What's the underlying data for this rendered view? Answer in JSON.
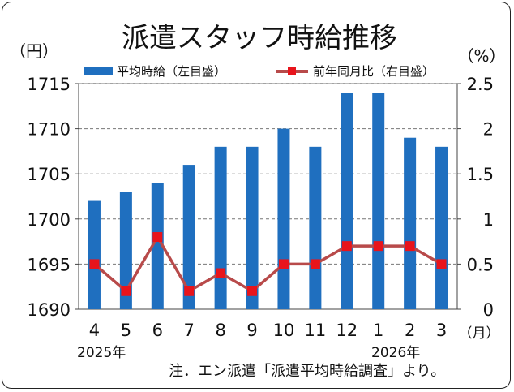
{
  "chart_data": {
    "type": "bar",
    "title": "派遣スタッフ時給推移",
    "categories": [
      "4",
      "5",
      "6",
      "7",
      "8",
      "9",
      "10",
      "11",
      "12",
      "1",
      "2",
      "3"
    ],
    "year_labels": [
      "2025年",
      "2026年"
    ],
    "left_unit": "（円）",
    "right_unit": "（%）",
    "x_unit": "（月）",
    "ylim_left": [
      1690,
      1715
    ],
    "yticks_left": [
      "1690",
      "1695",
      "1700",
      "1705",
      "1710",
      "1715"
    ],
    "ylim_right": [
      0,
      2.5
    ],
    "yticks_right": [
      "0",
      "0.5",
      "1",
      "1.5",
      "2",
      "2.5"
    ],
    "grid": true,
    "legend_position": "top",
    "series": [
      {
        "name": "平均時給（左目盛）",
        "type": "bar",
        "axis": "left",
        "color": "#1f6fbf",
        "values": [
          1702,
          1703,
          1704,
          1706,
          1708,
          1708,
          1710,
          1708,
          1714,
          1714,
          1709,
          1708
        ]
      },
      {
        "name": "前年同月比（右目盛）",
        "type": "line",
        "axis": "right",
        "color": "#b84a4a",
        "marker_color": "#e8141c",
        "values": [
          0.5,
          0.2,
          0.8,
          0.2,
          0.4,
          0.2,
          0.5,
          0.5,
          0.7,
          0.7,
          0.7,
          0.5
        ]
      }
    ],
    "note": "注．エン派遣「派遣平均時給調査」より。"
  }
}
